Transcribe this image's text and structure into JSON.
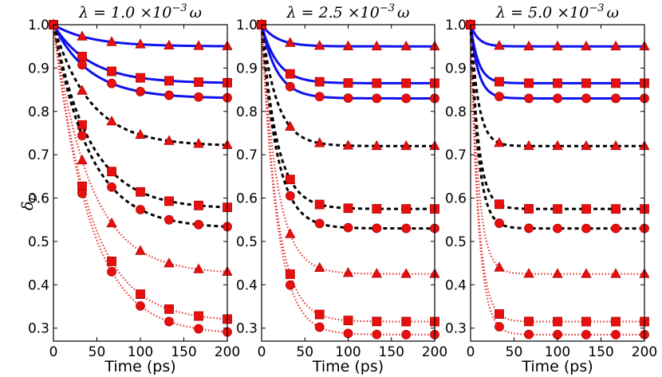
{
  "chart_data": {
    "type": "line",
    "ylabel": "δ_D",
    "ylabel_display": "δ",
    "ylabel_sub": "D",
    "xlabel": "Time (ps)",
    "xlim": [
      0,
      200
    ],
    "ylim": [
      0.27,
      1.0
    ],
    "xticks": [
      "0",
      "50",
      "100",
      "150",
      "200"
    ],
    "yticks": [
      "0.3",
      "0.4",
      "0.5",
      "0.6",
      "0.7",
      "0.8",
      "0.9",
      "1.0"
    ],
    "marker_times": [
      0,
      33,
      67,
      100,
      133,
      167,
      200
    ],
    "styles": {
      "blue_solid": {
        "color": "#1010ee",
        "dash": "none"
      },
      "black_dashed": {
        "color": "#000000",
        "dash": "5,4"
      },
      "red_dotted": {
        "color": "#e01010",
        "dash": "1.5,2.5"
      }
    },
    "panels": [
      {
        "title": "λ = 1.0 ×10⁻³ ω",
        "title_pre": "λ = 1.0 ×10",
        "title_exp": "−3",
        "title_post": "ω",
        "tau": 42,
        "series": [
          {
            "name": "blue triangle",
            "style": "blue_solid",
            "marker": "triangle",
            "final": 0.95
          },
          {
            "name": "blue square",
            "style": "blue_solid",
            "marker": "square",
            "final": 0.865
          },
          {
            "name": "blue circle",
            "style": "blue_solid",
            "marker": "circle",
            "final": 0.83
          },
          {
            "name": "black triangle",
            "style": "black_dashed",
            "marker": "triangle",
            "final": 0.72
          },
          {
            "name": "black square",
            "style": "black_dashed",
            "marker": "square",
            "final": 0.575
          },
          {
            "name": "black circle",
            "style": "black_dashed",
            "marker": "circle",
            "final": 0.53
          },
          {
            "name": "red triangle",
            "style": "red_dotted",
            "marker": "triangle",
            "final": 0.425
          },
          {
            "name": "red square",
            "style": "red_dotted",
            "marker": "square",
            "final": 0.315
          },
          {
            "name": "red circle",
            "style": "red_dotted",
            "marker": "circle",
            "final": 0.285
          }
        ]
      },
      {
        "title": "λ = 2.5 ×10⁻³ ω",
        "title_pre": "λ = 2.5 ×10",
        "title_exp": "−3",
        "title_post": "ω",
        "tau": 18,
        "series": [
          {
            "name": "blue triangle",
            "style": "blue_solid",
            "marker": "triangle",
            "final": 0.95
          },
          {
            "name": "blue square",
            "style": "blue_solid",
            "marker": "square",
            "final": 0.865
          },
          {
            "name": "blue circle",
            "style": "blue_solid",
            "marker": "circle",
            "final": 0.83
          },
          {
            "name": "black triangle",
            "style": "black_dashed",
            "marker": "triangle",
            "final": 0.72
          },
          {
            "name": "black square",
            "style": "black_dashed",
            "marker": "square",
            "final": 0.575
          },
          {
            "name": "black circle",
            "style": "black_dashed",
            "marker": "circle",
            "final": 0.53
          },
          {
            "name": "red triangle",
            "style": "red_dotted",
            "marker": "triangle",
            "final": 0.425
          },
          {
            "name": "red square",
            "style": "red_dotted",
            "marker": "square",
            "final": 0.315
          },
          {
            "name": "red circle",
            "style": "red_dotted",
            "marker": "circle",
            "final": 0.285
          }
        ]
      },
      {
        "title": "λ = 5.0 ×10⁻³ ω",
        "title_pre": "λ = 5.0 ×10",
        "title_exp": "−3",
        "title_post": "ω",
        "tau": 9,
        "series": [
          {
            "name": "blue triangle",
            "style": "blue_solid",
            "marker": "triangle",
            "final": 0.95
          },
          {
            "name": "blue square",
            "style": "blue_solid",
            "marker": "square",
            "final": 0.865
          },
          {
            "name": "blue circle",
            "style": "blue_solid",
            "marker": "circle",
            "final": 0.83
          },
          {
            "name": "black triangle",
            "style": "black_dashed",
            "marker": "triangle",
            "final": 0.72
          },
          {
            "name": "black square",
            "style": "black_dashed",
            "marker": "square",
            "final": 0.575
          },
          {
            "name": "black circle",
            "style": "black_dashed",
            "marker": "circle",
            "final": 0.53
          },
          {
            "name": "red triangle",
            "style": "red_dotted",
            "marker": "triangle",
            "final": 0.425
          },
          {
            "name": "red square",
            "style": "red_dotted",
            "marker": "square",
            "final": 0.315
          },
          {
            "name": "red circle",
            "style": "red_dotted",
            "marker": "circle",
            "final": 0.285
          }
        ]
      }
    ]
  }
}
